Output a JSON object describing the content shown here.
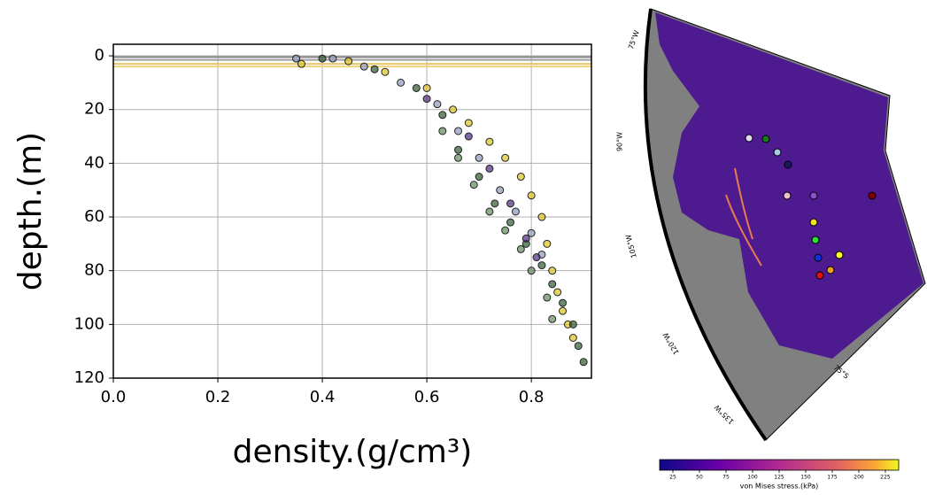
{
  "chart_data": [
    {
      "type": "scatter",
      "x_label": "density.(g/cm³)",
      "y_label": "depth.(m)",
      "xlim": [
        0,
        0.915
      ],
      "ylim": [
        120,
        -4.3
      ],
      "xticks": [
        {
          "value": 0,
          "label": "0.0"
        },
        0.2,
        0.4,
        0.6,
        0.8
      ],
      "yticks": [
        0,
        20,
        40,
        60,
        80,
        100,
        120
      ],
      "grid": true,
      "reference_lines": [
        {
          "value": 0.5,
          "color": "#8a8a8a"
        },
        {
          "value": 1.5,
          "color": "#a0a0a0"
        },
        {
          "value": 3,
          "color": "#e8c46a"
        },
        {
          "value": 4,
          "color": "#f0d27a"
        }
      ],
      "series": [
        {
          "color": "#d8c21e",
          "x": [
            0.36,
            0.45,
            0.52,
            0.6,
            0.65,
            0.68,
            0.72,
            0.75,
            0.78,
            0.8,
            0.82,
            0.83,
            0.84,
            0.85,
            0.86,
            0.87,
            0.88
          ],
          "values": [
            3,
            2,
            6,
            12,
            20,
            25,
            32,
            38,
            45,
            52,
            60,
            70,
            80,
            88,
            95,
            100,
            105
          ]
        },
        {
          "color": "#2e5a2e",
          "x": [
            0.4,
            0.5,
            0.58,
            0.63,
            0.66,
            0.7,
            0.73,
            0.76,
            0.79,
            0.82,
            0.84,
            0.86,
            0.88,
            0.89,
            0.9
          ],
          "values": [
            1,
            5,
            12,
            22,
            35,
            45,
            55,
            62,
            70,
            78,
            85,
            92,
            100,
            108,
            114
          ]
        },
        {
          "color": "#8c98b8",
          "x": [
            0.35,
            0.42,
            0.48,
            0.55,
            0.62,
            0.66,
            0.7,
            0.74,
            0.77,
            0.8,
            0.82
          ],
          "values": [
            1,
            1,
            4,
            10,
            18,
            28,
            38,
            50,
            58,
            66,
            74
          ]
        },
        {
          "color": "#4b2a80",
          "x": [
            0.6,
            0.68,
            0.72,
            0.76,
            0.79,
            0.81
          ],
          "values": [
            16,
            30,
            42,
            55,
            68,
            75
          ]
        },
        {
          "color": "#5f8a5a",
          "x": [
            0.63,
            0.66,
            0.69,
            0.72,
            0.75,
            0.78,
            0.8,
            0.83,
            0.84
          ],
          "values": [
            28,
            38,
            48,
            58,
            65,
            72,
            80,
            90,
            98
          ]
        }
      ]
    },
    {
      "type": "map",
      "colorbar_label": "von Mises stress.(kPa)",
      "clim": [
        12.5,
        237.5
      ],
      "colorbar_ticks": [
        25,
        50,
        75,
        100,
        125,
        150,
        175,
        200,
        225
      ],
      "graticule_labels": [
        "75°W",
        "90°W",
        "105°W",
        "120°W",
        "135°W",
        "75°S"
      ]
    }
  ]
}
